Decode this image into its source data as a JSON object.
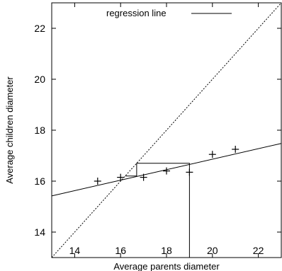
{
  "chart_data": {
    "type": "scatter",
    "title": "",
    "xlabel": "Average parents diameter",
    "ylabel": "Average children diameter",
    "xlim": [
      13,
      23
    ],
    "ylim": [
      13,
      23
    ],
    "x_ticks": [
      14,
      16,
      18,
      20,
      22
    ],
    "y_ticks": [
      14,
      16,
      18,
      20,
      22
    ],
    "grid": false,
    "legend": {
      "placement": "top-left",
      "entries": [
        {
          "label": "regression line",
          "style": "solid"
        }
      ]
    },
    "series": [
      {
        "kind": "points",
        "marker": "plus",
        "x": [
          15,
          16,
          17,
          18,
          19,
          20,
          21
        ],
        "y": [
          16.0,
          16.15,
          16.15,
          16.4,
          16.35,
          17.05,
          17.25
        ]
      }
    ],
    "lines": [
      {
        "kind": "regression",
        "style": "solid",
        "x": [
          13,
          23
        ],
        "y": [
          15.42,
          17.48
        ]
      },
      {
        "kind": "identity",
        "style": "dotted",
        "x": [
          13,
          23
        ],
        "y": [
          13,
          23
        ]
      }
    ],
    "annotations": [
      {
        "kind": "projection-path",
        "style": "solid",
        "points": [
          [
            19,
            13
          ],
          [
            19,
            16.7
          ],
          [
            16.7,
            16.7
          ],
          [
            16.7,
            16.2
          ],
          [
            16.2,
            16.2
          ]
        ]
      }
    ],
    "colors": {
      "background": "#ffffff",
      "foreground": "#000000"
    }
  }
}
